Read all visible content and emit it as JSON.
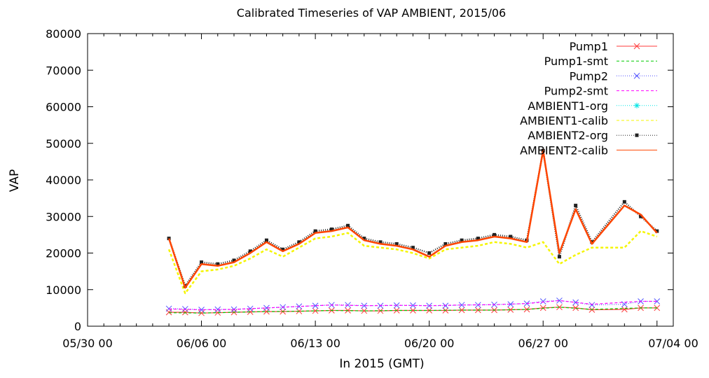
{
  "chart_data": {
    "type": "line",
    "title": "Calibrated Timeseries of VAP AMBIENT, 2015/06",
    "xlabel": "In 2015 (GMT)",
    "ylabel": "VAP",
    "xlim": [
      "05/30 00",
      "07/04 00"
    ],
    "ylim": [
      0,
      80000
    ],
    "x_ticks": [
      "05/30 00",
      "06/06 00",
      "06/13 00",
      "06/20 00",
      "06/27 00",
      "07/04 00"
    ],
    "y_ticks": [
      0,
      10000,
      20000,
      30000,
      40000,
      50000,
      60000,
      70000,
      80000
    ],
    "grid": false,
    "legend_position": "top-right",
    "series": [
      {
        "name": "Pump1",
        "color": "#ff3b3b",
        "marker": "x",
        "line": "solid",
        "x": [
          "06/04",
          "06/05",
          "06/06",
          "06/07",
          "06/08",
          "06/09",
          "06/10",
          "06/11",
          "06/12",
          "06/13",
          "06/14",
          "06/15",
          "06/16",
          "06/17",
          "06/18",
          "06/19",
          "06/20",
          "06/21",
          "06/22",
          "06/23",
          "06/24",
          "06/25",
          "06/26",
          "06/27",
          "06/28",
          "06/29",
          "06/30",
          "07/01",
          "07/02",
          "07/03"
        ],
        "values": [
          3800,
          3800,
          3600,
          3700,
          3800,
          3900,
          4000,
          4000,
          4100,
          4200,
          4300,
          4300,
          4200,
          4200,
          4300,
          4300,
          4300,
          4300,
          4400,
          4400,
          4400,
          4500,
          4600,
          5000,
          5200,
          5000,
          4500,
          4600,
          5000,
          5000
        ]
      },
      {
        "name": "Pump1-smt",
        "color": "#00cc00",
        "marker": "",
        "line": "dashed",
        "x": [
          "06/04",
          "06/06",
          "06/08",
          "06/10",
          "06/12",
          "06/14",
          "06/16",
          "06/18",
          "06/20",
          "06/22",
          "06/24",
          "06/26",
          "06/28",
          "06/30",
          "07/02",
          "07/03"
        ],
        "values": [
          3700,
          3600,
          3800,
          4000,
          4100,
          4300,
          4200,
          4300,
          4300,
          4400,
          4400,
          4600,
          5200,
          4600,
          5000,
          5000
        ]
      },
      {
        "name": "Pump2",
        "color": "#5555ff",
        "marker": "x",
        "line": "dotted",
        "x": [
          "06/04",
          "06/05",
          "06/06",
          "06/07",
          "06/08",
          "06/09",
          "06/10",
          "06/11",
          "06/12",
          "06/13",
          "06/14",
          "06/15",
          "06/16",
          "06/17",
          "06/18",
          "06/19",
          "06/20",
          "06/21",
          "06/22",
          "06/23",
          "06/24",
          "06/25",
          "06/26",
          "06/27",
          "06/28",
          "06/29",
          "06/30",
          "07/01",
          "07/02",
          "07/03"
        ],
        "values": [
          4800,
          4700,
          4500,
          4600,
          4600,
          4800,
          5000,
          5200,
          5400,
          5600,
          5800,
          5800,
          5600,
          5600,
          5700,
          5700,
          5600,
          5600,
          5800,
          5800,
          5900,
          6000,
          6200,
          6800,
          7000,
          6500,
          5800,
          6000,
          6800,
          6800
        ]
      },
      {
        "name": "Pump2-smt",
        "color": "#ff00ff",
        "marker": "",
        "line": "dashed",
        "x": [
          "06/04",
          "06/06",
          "06/08",
          "06/10",
          "06/12",
          "06/14",
          "06/16",
          "06/18",
          "06/20",
          "06/22",
          "06/24",
          "06/26",
          "06/28",
          "06/30",
          "07/02",
          "07/03"
        ],
        "values": [
          4700,
          4500,
          4600,
          5000,
          5400,
          5800,
          5600,
          5700,
          5600,
          5800,
          5900,
          6200,
          7000,
          6000,
          6800,
          6800
        ]
      },
      {
        "name": "AMBIENT1-org",
        "color": "#00e5e5",
        "marker": "*",
        "line": "dotted",
        "x": [],
        "values": []
      },
      {
        "name": "AMBIENT1-calib",
        "color": "#f5f500",
        "marker": "",
        "line": "dashed",
        "x": [
          "06/04",
          "06/05",
          "06/06",
          "06/07",
          "06/08",
          "06/09",
          "06/10",
          "06/11",
          "06/12",
          "06/13",
          "06/14",
          "06/15",
          "06/16",
          "06/17",
          "06/18",
          "06/19",
          "06/20",
          "06/21",
          "06/22",
          "06/23",
          "06/24",
          "06/25",
          "06/26",
          "06/27",
          "06/28",
          "06/29",
          "06/30",
          "07/01",
          "07/02",
          "07/03"
        ],
        "values": [
          21000,
          9000,
          15000,
          15500,
          16500,
          18500,
          21000,
          19000,
          21500,
          24000,
          24500,
          25500,
          22000,
          21500,
          21000,
          20000,
          18500,
          21000,
          21500,
          22000,
          23000,
          22500,
          21500,
          23000,
          17000,
          19500,
          21500,
          21500,
          26000,
          24500
        ]
      },
      {
        "name": "AMBIENT2-org",
        "color": "#222222",
        "marker": "square",
        "line": "dotted",
        "x": [
          "06/04",
          "06/05",
          "06/06",
          "06/07",
          "06/08",
          "06/09",
          "06/10",
          "06/11",
          "06/12",
          "06/13",
          "06/14",
          "06/15",
          "06/16",
          "06/17",
          "06/18",
          "06/19",
          "06/20",
          "06/21",
          "06/22",
          "06/23",
          "06/24",
          "06/25",
          "06/26",
          "06/27",
          "06/28",
          "06/29",
          "06/30",
          "07/01",
          "07/02",
          "07/03"
        ],
        "values": [
          24000,
          11000,
          17500,
          17000,
          18000,
          20500,
          23500,
          21000,
          23000,
          26000,
          26500,
          27500,
          24000,
          23000,
          22500,
          21500,
          20000,
          22500,
          23500,
          24000,
          25000,
          24500,
          23500,
          48000,
          19000,
          33000,
          23000,
          34000,
          30000,
          26000
        ]
      },
      {
        "name": "AMBIENT2-calib",
        "color": "#ff4500",
        "marker": "",
        "line": "solid",
        "x": [
          "06/04",
          "06/05",
          "06/06",
          "06/07",
          "06/08",
          "06/09",
          "06/10",
          "06/11",
          "06/12",
          "06/13",
          "06/14",
          "06/15",
          "06/16",
          "06/17",
          "06/18",
          "06/19",
          "06/20",
          "06/21",
          "06/22",
          "06/23",
          "06/24",
          "06/25",
          "06/26",
          "06/27",
          "06/28",
          "06/29",
          "06/30",
          "07/01",
          "07/02",
          "07/03"
        ],
        "values": [
          24000,
          10500,
          17000,
          16500,
          17500,
          20000,
          23000,
          20500,
          22500,
          25500,
          26000,
          27000,
          23500,
          22500,
          22000,
          21000,
          19000,
          22000,
          23000,
          23500,
          24500,
          24000,
          23000,
          48000,
          20000,
          32000,
          22500,
          33000,
          30500,
          25500
        ]
      }
    ]
  }
}
